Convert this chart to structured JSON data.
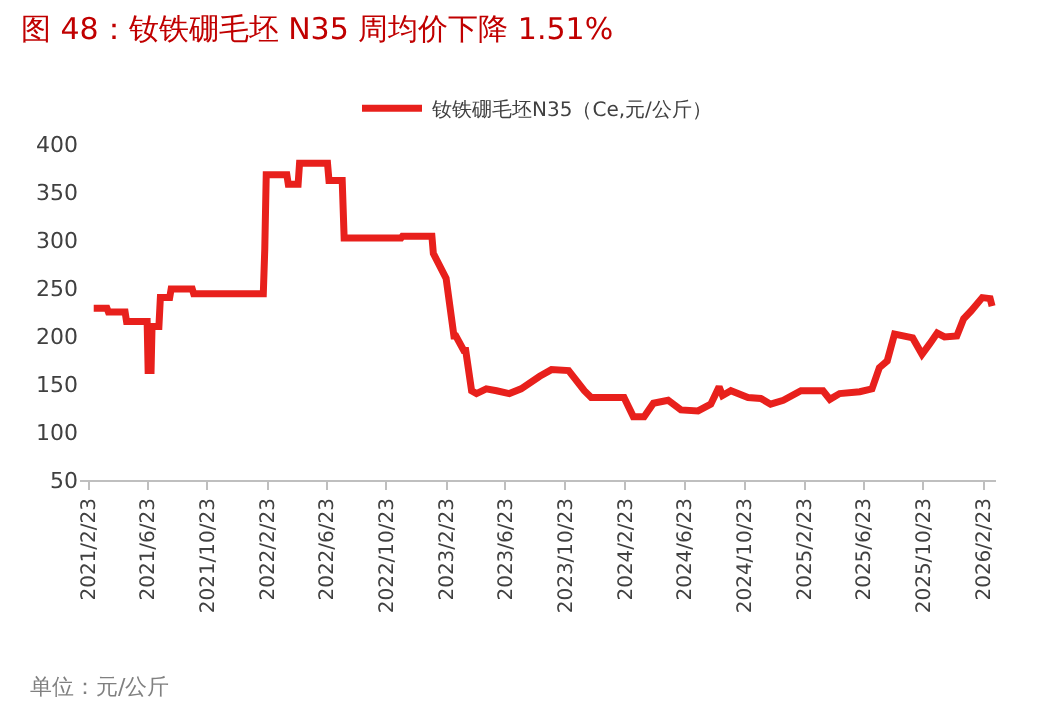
{
  "chart_data": {
    "type": "line",
    "title": "图 48：钕铁硼毛坯 N35 周均价下降 1.51%",
    "annotations": [
      "单位：元/公斤"
    ],
    "x": [
      "2021-03-05",
      "2021-04-01",
      "2021-04-04",
      "2021-05-08",
      "2021-05-11",
      "2021-06-22",
      "2021-06-24",
      "2021-06-30",
      "2021-07-02",
      "2021-07-16",
      "2021-07-19",
      "2021-08-07",
      "2021-08-10",
      "2021-09-22",
      "2021-09-25",
      "2022-02-14",
      "2022-02-17",
      "2022-02-20",
      "2022-04-03",
      "2022-04-06",
      "2022-04-26",
      "2022-04-29",
      "2022-06-25",
      "2022-06-28",
      "2022-07-25",
      "2022-07-29",
      "2022-11-22",
      "2022-11-25",
      "2023-01-24",
      "2023-01-27",
      "2023-02-22",
      "2023-03-10",
      "2023-03-14",
      "2023-03-30",
      "2023-04-03",
      "2023-04-15",
      "2023-04-25",
      "2023-05-15",
      "2023-06-05",
      "2023-07-01",
      "2023-07-25",
      "2023-09-01",
      "2023-09-25",
      "2023-10-30",
      "2023-12-01",
      "2023-12-15",
      "2024-02-20",
      "2024-03-10",
      "2024-04-01",
      "2024-04-20",
      "2024-05-20",
      "2024-06-15",
      "2024-07-20",
      "2024-08-15",
      "2024-09-01",
      "2024-09-08",
      "2024-09-25",
      "2024-10-30",
      "2024-11-25",
      "2024-12-15",
      "2025-01-10",
      "2025-02-15",
      "2025-04-01",
      "2025-04-15",
      "2025-05-05",
      "2025-06-15",
      "2025-07-10",
      "2025-07-25",
      "2025-08-10",
      "2025-08-25",
      "2025-10-01",
      "2025-10-20",
      "2025-11-05",
      "2025-11-20",
      "2025-12-05",
      "2025-12-30",
      "2026-01-13",
      "2026-01-28",
      "2026-02-20",
      "2026-03-08",
      "2026-03-12"
    ],
    "series": [
      {
        "name": "钕铁硼毛坯N35（Ce,元/公斤）",
        "color": "#e8201c",
        "values": [
          229,
          229,
          225,
          225,
          215,
          215,
          164,
          164,
          210,
          210,
          240,
          240,
          249,
          249,
          244,
          244,
          290,
          368,
          368,
          358,
          358,
          380,
          380,
          362,
          362,
          302,
          302,
          304,
          304,
          286,
          260,
          200,
          200,
          185,
          185,
          143,
          140,
          145,
          143,
          140,
          145,
          158,
          165,
          164,
          143,
          136,
          136,
          116,
          116,
          130,
          133,
          123,
          122,
          129,
          147,
          138,
          143,
          136,
          135,
          129,
          133,
          143,
          143,
          134,
          140,
          142,
          145,
          167,
          174,
          202,
          198,
          181,
          192,
          203,
          199,
          200,
          218,
          226,
          240,
          239,
          231
        ]
      }
    ],
    "xlim": [
      "2021-02-05",
      "2026-03-20"
    ],
    "xticks": [
      {
        "value": "2021-02-23",
        "label": "2021/2/23"
      },
      {
        "value": "2021-06-23",
        "label": "2021/6/23"
      },
      {
        "value": "2021-10-23",
        "label": "2021/10/23"
      },
      {
        "value": "2022-02-23",
        "label": "2022/2/23"
      },
      {
        "value": "2022-06-23",
        "label": "2022/6/23"
      },
      {
        "value": "2022-10-23",
        "label": "2022/10/23"
      },
      {
        "value": "2023-02-23",
        "label": "2023/2/23"
      },
      {
        "value": "2023-06-23",
        "label": "2023/6/23"
      },
      {
        "value": "2023-10-23",
        "label": "2023/10/23"
      },
      {
        "value": "2024-02-23",
        "label": "2024/2/23"
      },
      {
        "value": "2024-06-23",
        "label": "2024/6/23"
      },
      {
        "value": "2024-10-23",
        "label": "2024/10/23"
      },
      {
        "value": "2025-02-23",
        "label": "2025/2/23"
      },
      {
        "value": "2025-06-23",
        "label": "2025/6/23"
      },
      {
        "value": "2025-10-23",
        "label": "2025/10/23"
      },
      {
        "value": "2026-02-23",
        "label": "2026/2/23"
      }
    ],
    "ylim": [
      50,
      400
    ],
    "yticks": [
      50,
      100,
      150,
      200,
      250,
      300,
      350,
      400
    ],
    "legend": "top",
    "marker": "none",
    "line_style": "solid"
  }
}
